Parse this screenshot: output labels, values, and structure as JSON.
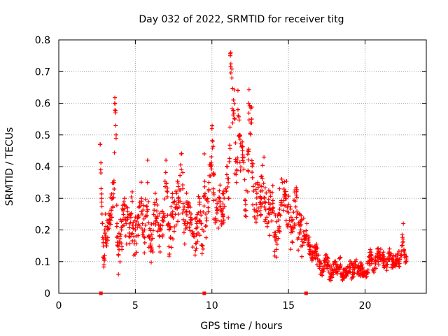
{
  "chart_data": {
    "type": "scatter",
    "title": "Day 032 of 2022, SRMTID for receiver titg",
    "xlabel": "GPS time / hours",
    "ylabel": "SRMTID / TECUs",
    "xlim": [
      0,
      24
    ],
    "ylim": [
      0,
      0.8
    ],
    "xticks": [
      "0",
      "5",
      "10",
      "15",
      "20"
    ],
    "yticks": [
      "0",
      "0.1",
      "0.2",
      "0.3",
      "0.4",
      "0.5",
      "0.6",
      "0.7",
      "0.8"
    ],
    "grid": true,
    "marker": "+",
    "color": "#ff0000",
    "series": [
      {
        "name": "SRMTID",
        "x": [
          2.7,
          2.75,
          2.8,
          2.85,
          2.9,
          2.95,
          3.0,
          3.05,
          3.1,
          3.15,
          3.2,
          3.3,
          3.4,
          3.5,
          3.6,
          3.65,
          3.7,
          3.75,
          3.8,
          3.85,
          3.9,
          4.0,
          4.1,
          4.2,
          4.3,
          4.4,
          4.5,
          4.6,
          4.7,
          4.8,
          4.9,
          5.0,
          5.2,
          5.4,
          5.6,
          5.8,
          5.9,
          6.0,
          6.2,
          6.4,
          6.6,
          6.8,
          7.0,
          7.1,
          7.2,
          7.4,
          7.6,
          7.8,
          8.0,
          8.1,
          8.2,
          8.4,
          8.6,
          8.8,
          9.0,
          9.2,
          9.4,
          9.5,
          9.6,
          9.8,
          10.0,
          10.05,
          10.1,
          10.3,
          10.5,
          10.7,
          10.9,
          11.0,
          11.1,
          11.2,
          11.3,
          11.5,
          11.6,
          11.7,
          11.8,
          12.0,
          12.1,
          12.2,
          12.4,
          12.6,
          12.8,
          13.0,
          13.2,
          13.4,
          13.6,
          13.8,
          14.0,
          14.2,
          14.4,
          14.6,
          14.8,
          15.0,
          15.2,
          15.4,
          15.6,
          15.8,
          16.0,
          16.2,
          16.4,
          16.6,
          16.8,
          17.0,
          17.2,
          17.4,
          17.6,
          17.8,
          18.0,
          18.2,
          18.4,
          18.6,
          18.8,
          19.0,
          19.2,
          19.4,
          19.6,
          19.8,
          20.0,
          20.2,
          20.4,
          20.6,
          20.8,
          21.0,
          21.2,
          21.4,
          21.6,
          21.8,
          22.0,
          22.2,
          22.4,
          22.5,
          22.6,
          22.7
        ],
        "y": [
          0.47,
          0.38,
          0.3,
          0.22,
          0.17,
          0.09,
          0.2,
          0.25,
          0.15,
          0.23,
          0.2,
          0.22,
          0.25,
          0.3,
          0.35,
          0.6,
          0.57,
          0.5,
          0.22,
          0.15,
          0.12,
          0.18,
          0.2,
          0.26,
          0.3,
          0.22,
          0.27,
          0.19,
          0.25,
          0.29,
          0.18,
          0.2,
          0.24,
          0.3,
          0.2,
          0.42,
          0.18,
          0.15,
          0.22,
          0.26,
          0.2,
          0.23,
          0.42,
          0.32,
          0.2,
          0.25,
          0.27,
          0.3,
          0.44,
          0.33,
          0.22,
          0.28,
          0.24,
          0.18,
          0.22,
          0.3,
          0.15,
          0.44,
          0.25,
          0.35,
          0.52,
          0.48,
          0.38,
          0.27,
          0.3,
          0.25,
          0.33,
          0.4,
          0.3,
          0.75,
          0.68,
          0.55,
          0.35,
          0.64,
          0.5,
          0.45,
          0.43,
          0.28,
          0.6,
          0.55,
          0.26,
          0.35,
          0.3,
          0.43,
          0.22,
          0.32,
          0.27,
          0.18,
          0.25,
          0.35,
          0.3,
          0.28,
          0.2,
          0.32,
          0.25,
          0.2,
          0.16,
          0.22,
          0.15,
          0.12,
          0.15,
          0.1,
          0.07,
          0.12,
          0.09,
          0.06,
          0.1,
          0.08,
          0.09,
          0.05,
          0.07,
          0.09,
          0.06,
          0.1,
          0.07,
          0.09,
          0.06,
          0.1,
          0.13,
          0.08,
          0.14,
          0.11,
          0.13,
          0.09,
          0.14,
          0.1,
          0.12,
          0.1,
          0.15,
          0.22,
          0.12,
          0.1
        ]
      }
    ],
    "zero_markers_x": [
      2.75,
      9.5,
      16.15
    ]
  }
}
